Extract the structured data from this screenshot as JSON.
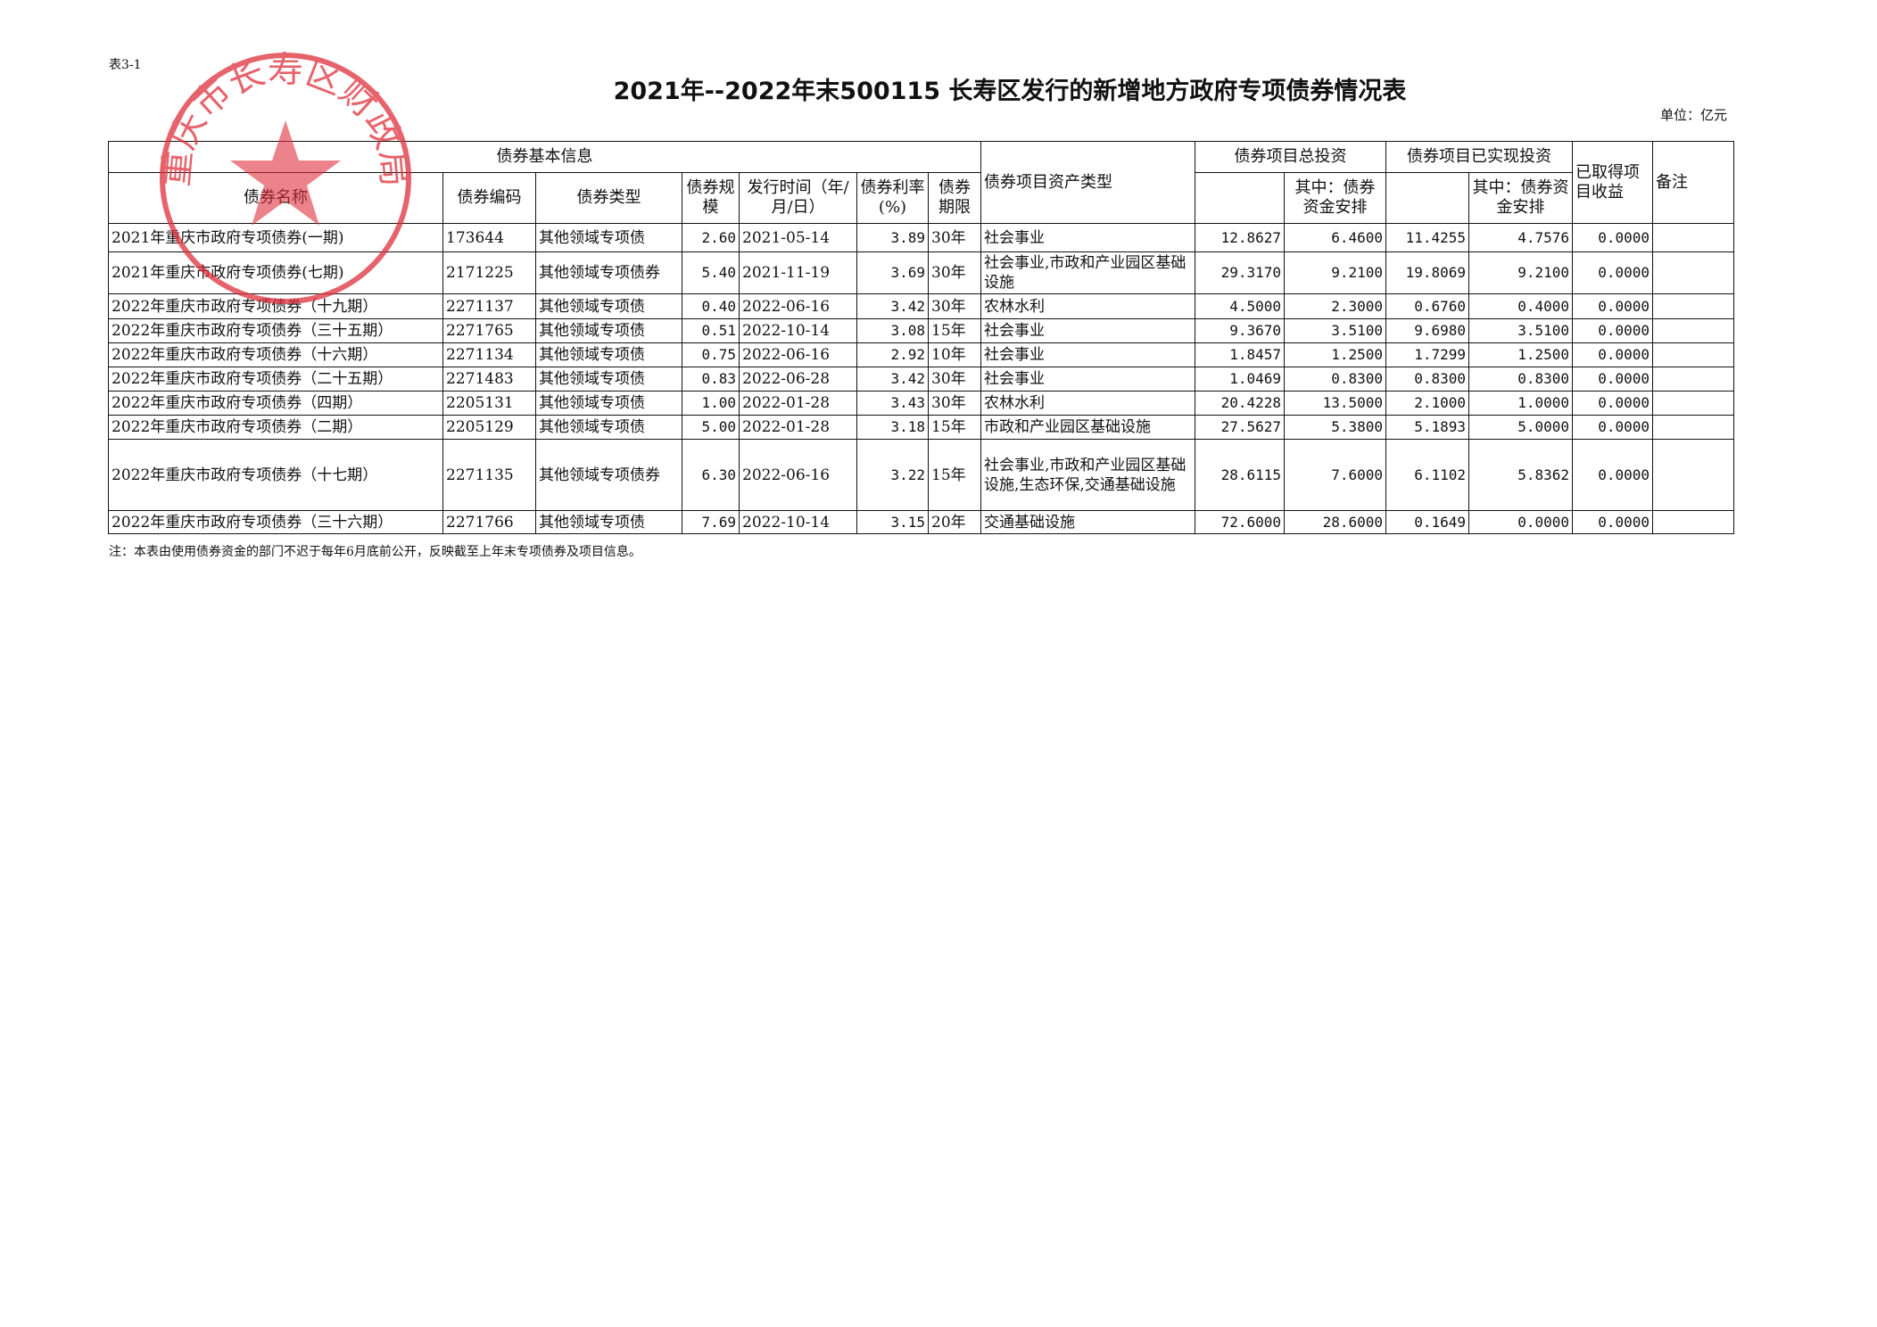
{
  "table_no": "表3-1",
  "title": "2021年--2022年末500115 长寿区发行的新增地方政府专项债券情况表",
  "unit": "单位：亿元",
  "stamp": {
    "text": "重庆市长寿区财政局",
    "color": "#e0303c"
  },
  "headers": {
    "basic_info": "债券基本信息",
    "name": "债券名称",
    "code": "债券编码",
    "type": "债券类型",
    "scale": "债券规模",
    "issue_date": "发行时间（年/月/日）",
    "rate": "债券利率(%)",
    "term": "债券期限",
    "asset_type": "债券项目资产类型",
    "total_invest": "债券项目总投资",
    "total_invest_bond": "其中：债券资金安排",
    "realized_invest": "债券项目已实现投资",
    "realized_invest_bond": "其中：债券资金安排",
    "income": "已取得项目收益",
    "remark": "备注"
  },
  "rows": [
    [
      "2021年重庆市政府专项债券(一期)",
      "173644",
      "其他领域专项债",
      "2.60",
      "2021-05-14",
      "3.89",
      "30年",
      "社会事业",
      "12.8627",
      "6.4600",
      "11.4255",
      "4.7576",
      "0.0000",
      ""
    ],
    [
      "2021年重庆市政府专项债券(七期)",
      "2171225",
      "其他领域专项债券",
      "5.40",
      "2021-11-19",
      "3.69",
      "30年",
      "社会事业,市政和产业园区基础设施",
      "29.3170",
      "9.2100",
      "19.8069",
      "9.2100",
      "0.0000",
      ""
    ],
    [
      "2022年重庆市政府专项债券（十九期）",
      "2271137",
      "其他领域专项债",
      "0.40",
      "2022-06-16",
      "3.42",
      "30年",
      "农林水利",
      "4.5000",
      "2.3000",
      "0.6760",
      "0.4000",
      "0.0000",
      ""
    ],
    [
      "2022年重庆市政府专项债券（三十五期）",
      "2271765",
      "其他领域专项债",
      "0.51",
      "2022-10-14",
      "3.08",
      "15年",
      "社会事业",
      "9.3670",
      "3.5100",
      "9.6980",
      "3.5100",
      "0.0000",
      ""
    ],
    [
      "2022年重庆市政府专项债券（十六期）",
      "2271134",
      "其他领域专项债",
      "0.75",
      "2022-06-16",
      "2.92",
      "10年",
      "社会事业",
      "1.8457",
      "1.2500",
      "1.7299",
      "1.2500",
      "0.0000",
      ""
    ],
    [
      "2022年重庆市政府专项债券（二十五期）",
      "2271483",
      "其他领域专项债",
      "0.83",
      "2022-06-28",
      "3.42",
      "30年",
      "社会事业",
      "1.0469",
      "0.8300",
      "0.8300",
      "0.8300",
      "0.0000",
      ""
    ],
    [
      "2022年重庆市政府专项债券（四期）",
      "2205131",
      "其他领域专项债",
      "1.00",
      "2022-01-28",
      "3.43",
      "30年",
      "农林水利",
      "20.4228",
      "13.5000",
      "2.1000",
      "1.0000",
      "0.0000",
      ""
    ],
    [
      "2022年重庆市政府专项债券（二期）",
      "2205129",
      "其他领域专项债",
      "5.00",
      "2022-01-28",
      "3.18",
      "15年",
      "市政和产业园区基础设施",
      "27.5627",
      "5.3800",
      "5.1893",
      "5.0000",
      "0.0000",
      ""
    ],
    [
      "2022年重庆市政府专项债券（十七期）",
      "2271135",
      "其他领域专项债券",
      "6.30",
      "2022-06-16",
      "3.22",
      "15年",
      "社会事业,市政和产业园区基础设施,生态环保,交通基础设施",
      "28.6115",
      "7.6000",
      "6.1102",
      "5.8362",
      "0.0000",
      ""
    ],
    [
      "2022年重庆市政府专项债券（三十六期）",
      "2271766",
      "其他领域专项债",
      "7.69",
      "2022-10-14",
      "3.15",
      "20年",
      "交通基础设施",
      "72.6000",
      "28.6000",
      "0.1649",
      "0.0000",
      "0.0000",
      ""
    ]
  ],
  "note": "注：本表由使用债券资金的部门不迟于每年6月底前公开，反映截至上年末专项债券及项目信息。"
}
